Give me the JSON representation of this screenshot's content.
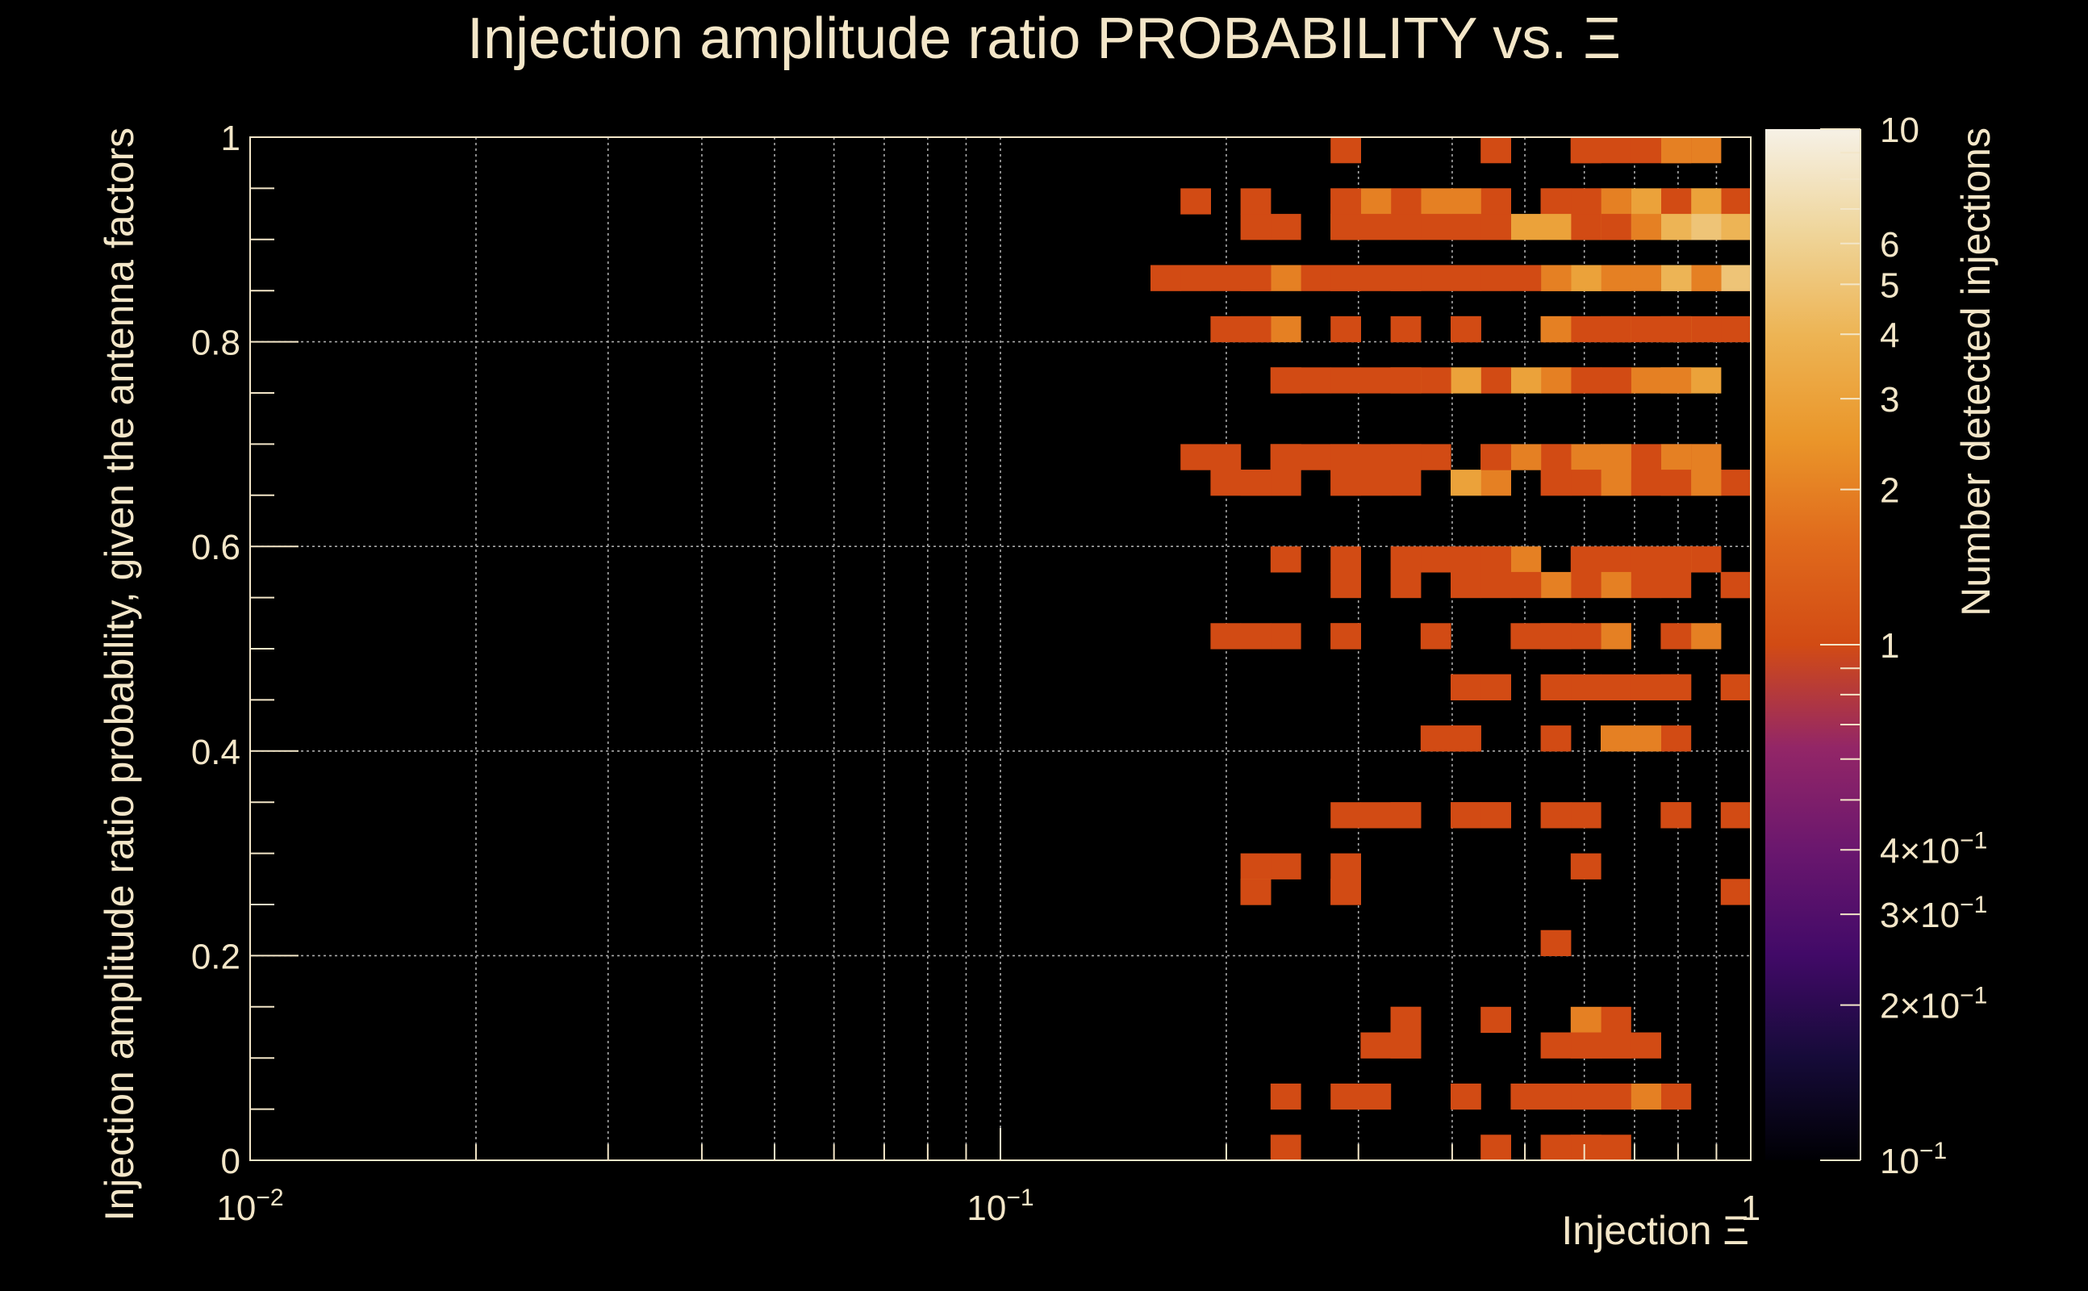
{
  "chart_data": {
    "type": "heatmap",
    "title": "Injection amplitude ratio PROBABILITY vs.  Ξ",
    "xlabel": "Injection Ξ",
    "ylabel": "Injection amplitude ratio probability, given the antenna factors",
    "zlabel": "Number detected injections",
    "xscale": "log",
    "xlim": [
      0.01,
      1
    ],
    "ylim": [
      0,
      1
    ],
    "zscale": "log",
    "zlim": [
      0.1,
      10
    ],
    "grid": true,
    "colormap": "inferno",
    "x_tick_labels": [
      {
        "value": 0.01,
        "base": "10",
        "exp": "−2"
      },
      {
        "value": 0.1,
        "base": "10",
        "exp": "−1"
      },
      {
        "value": 1,
        "base": "1",
        "exp": ""
      }
    ],
    "y_tick_labels": [
      "0",
      "0.2",
      "0.4",
      "0.6",
      "0.8",
      "1"
    ],
    "y_tick_values": [
      0,
      0.2,
      0.4,
      0.6,
      0.8,
      1
    ],
    "z_tick_labels": [
      {
        "value": 10,
        "label": "10"
      },
      {
        "value": 6,
        "label": "6"
      },
      {
        "value": 5,
        "label": "5"
      },
      {
        "value": 4,
        "label": "4"
      },
      {
        "value": 3,
        "label": "3"
      },
      {
        "value": 2,
        "label": "2"
      },
      {
        "value": 1,
        "label": "1"
      },
      {
        "value": 0.4,
        "label": "4×10",
        "exp": "−1"
      },
      {
        "value": 0.3,
        "label": "3×10",
        "exp": "−1"
      },
      {
        "value": 0.2,
        "label": "2×10",
        "exp": "−1"
      },
      {
        "value": 0.1,
        "label": "10",
        "exp": "−1"
      }
    ],
    "x_bins": 50,
    "y_bins": 40,
    "cells": [
      [
        1.0,
        0.95,
        1
      ],
      [
        1.0,
        0.9,
        1
      ],
      [
        1.0,
        0.85,
        1
      ],
      [
        1.0,
        0.8,
        1
      ],
      [
        1.0,
        0.55,
        1
      ],
      [
        1.0,
        0.45,
        1
      ],
      [
        1.0,
        0.35,
        1
      ],
      [
        1.0,
        0.25,
        1
      ],
      [
        0.96,
        0.95,
        1
      ],
      [
        0.96,
        0.9,
        4
      ],
      [
        0.96,
        0.85,
        5
      ],
      [
        0.96,
        0.65,
        1
      ],
      [
        0.96,
        0.55,
        1
      ],
      [
        0.96,
        0.45,
        1
      ],
      [
        0.89,
        1.0,
        2
      ],
      [
        0.89,
        0.95,
        3
      ],
      [
        0.89,
        0.9,
        4
      ],
      [
        0.89,
        0.85,
        1
      ],
      [
        0.89,
        0.8,
        1
      ],
      [
        0.89,
        0.7,
        1
      ],
      [
        0.89,
        0.65,
        1
      ],
      [
        0.89,
        0.6,
        1
      ],
      [
        0.85,
        0.95,
        3
      ],
      [
        0.85,
        0.9,
        5
      ],
      [
        0.85,
        0.85,
        2
      ],
      [
        0.85,
        0.75,
        3
      ],
      [
        0.85,
        0.7,
        2
      ],
      [
        0.85,
        0.65,
        2
      ],
      [
        0.85,
        0.6,
        1
      ],
      [
        0.85,
        0.5,
        2
      ],
      [
        0.8,
        1.0,
        1
      ],
      [
        0.8,
        0.95,
        3
      ],
      [
        0.8,
        0.9,
        4
      ],
      [
        0.8,
        0.85,
        8
      ],
      [
        0.8,
        0.8,
        3
      ],
      [
        0.8,
        0.75,
        4
      ],
      [
        0.8,
        0.7,
        1
      ],
      [
        0.8,
        0.65,
        3
      ],
      [
        0.8,
        0.6,
        2
      ],
      [
        0.8,
        0.55,
        1
      ],
      [
        0.8,
        0.45,
        1
      ],
      [
        0.8,
        0.35,
        1
      ],
      [
        0.8,
        0.05,
        1
      ],
      [
        0.76,
        1.0,
        2
      ],
      [
        0.76,
        0.95,
        1
      ],
      [
        0.76,
        0.9,
        4
      ],
      [
        0.76,
        0.85,
        4
      ],
      [
        0.76,
        0.8,
        1
      ],
      [
        0.76,
        0.75,
        2
      ],
      [
        0.76,
        0.7,
        2
      ],
      [
        0.76,
        0.65,
        1
      ],
      [
        0.76,
        0.6,
        1
      ],
      [
        0.76,
        0.5,
        1
      ],
      [
        0.76,
        0.45,
        1
      ],
      [
        0.76,
        0.4,
        1
      ],
      [
        0.76,
        0.35,
        1
      ],
      [
        0.72,
        1.0,
        1
      ],
      [
        0.72,
        0.95,
        3
      ],
      [
        0.72,
        0.9,
        2
      ],
      [
        0.72,
        0.85,
        2
      ],
      [
        0.72,
        0.8,
        1
      ],
      [
        0.72,
        0.75,
        2
      ],
      [
        0.72,
        0.7,
        1
      ],
      [
        0.72,
        0.65,
        1
      ],
      [
        0.72,
        0.6,
        1
      ],
      [
        0.72,
        0.55,
        1
      ],
      [
        0.72,
        0.45,
        1
      ],
      [
        0.72,
        0.4,
        2
      ],
      [
        0.72,
        0.1,
        1
      ],
      [
        0.72,
        0.05,
        2
      ],
      [
        0.69,
        0.95,
        1
      ],
      [
        0.69,
        0.9,
        3
      ],
      [
        0.69,
        0.85,
        2
      ],
      [
        0.69,
        0.8,
        2
      ],
      [
        0.69,
        0.75,
        1
      ],
      [
        0.69,
        0.7,
        2
      ],
      [
        0.69,
        0.65,
        1
      ],
      [
        0.69,
        0.6,
        1
      ],
      [
        0.69,
        0.5,
        1
      ],
      [
        0.69,
        0.45,
        1
      ],
      [
        0.69,
        0.1,
        1
      ],
      [
        0.65,
        1.0,
        1
      ],
      [
        0.65,
        0.95,
        2
      ],
      [
        0.65,
        0.9,
        1
      ],
      [
        0.65,
        0.85,
        2
      ],
      [
        0.65,
        0.8,
        1
      ],
      [
        0.65,
        0.75,
        1
      ],
      [
        0.65,
        0.7,
        2
      ],
      [
        0.65,
        0.65,
        2
      ],
      [
        0.65,
        0.6,
        1
      ],
      [
        0.65,
        0.55,
        2
      ],
      [
        0.65,
        0.5,
        2
      ],
      [
        0.65,
        0.4,
        2
      ],
      [
        0.65,
        0.15,
        1
      ],
      [
        0.65,
        0.1,
        1
      ],
      [
        0.65,
        0.05,
        1
      ],
      [
        0.65,
        0.0,
        1
      ],
      [
        0.62,
        1.0,
        1
      ],
      [
        0.62,
        0.95,
        1
      ],
      [
        0.62,
        0.9,
        3
      ],
      [
        0.62,
        0.85,
        4
      ],
      [
        0.62,
        0.75,
        1
      ],
      [
        0.62,
        0.7,
        2
      ],
      [
        0.62,
        0.55,
        1
      ],
      [
        0.62,
        0.5,
        1
      ],
      [
        0.62,
        0.45,
        1
      ],
      [
        0.62,
        0.15,
        2
      ],
      [
        0.62,
        0.1,
        1
      ],
      [
        0.62,
        0.05,
        1
      ],
      [
        0.62,
        0.0,
        1
      ],
      [
        0.59,
        1.0,
        1
      ],
      [
        0.59,
        0.95,
        1
      ],
      [
        0.59,
        0.9,
        1
      ],
      [
        0.59,
        0.85,
        3
      ],
      [
        0.59,
        0.8,
        1
      ],
      [
        0.59,
        0.75,
        1
      ],
      [
        0.59,
        0.65,
        1
      ],
      [
        0.59,
        0.6,
        1
      ],
      [
        0.59,
        0.35,
        1
      ],
      [
        0.59,
        0.3,
        1
      ],
      [
        0.59,
        0.1,
        1
      ],
      [
        0.59,
        0.0,
        1
      ],
      [
        0.56,
        0.95,
        1
      ],
      [
        0.56,
        0.85,
        2
      ],
      [
        0.56,
        0.8,
        1
      ],
      [
        0.56,
        0.75,
        1
      ],
      [
        0.56,
        0.7,
        1
      ],
      [
        0.56,
        0.5,
        1
      ],
      [
        0.56,
        0.35,
        1
      ],
      [
        0.56,
        0.05,
        1
      ],
      [
        0.53,
        0.95,
        1
      ],
      [
        0.53,
        0.9,
        3
      ],
      [
        0.53,
        0.85,
        2
      ],
      [
        0.53,
        0.8,
        2
      ],
      [
        0.53,
        0.75,
        2
      ],
      [
        0.53,
        0.7,
        1
      ],
      [
        0.53,
        0.65,
        1
      ],
      [
        0.53,
        0.55,
        2
      ],
      [
        0.53,
        0.5,
        1
      ],
      [
        0.53,
        0.45,
        1
      ],
      [
        0.53,
        0.4,
        1
      ],
      [
        0.53,
        0.2,
        1
      ],
      [
        0.53,
        0.1,
        1
      ],
      [
        0.53,
        0.0,
        1
      ],
      [
        0.5,
        0.9,
        3
      ],
      [
        0.5,
        0.85,
        1
      ],
      [
        0.5,
        0.75,
        3
      ],
      [
        0.5,
        0.7,
        2
      ],
      [
        0.5,
        0.6,
        2
      ],
      [
        0.5,
        0.55,
        1
      ],
      [
        0.5,
        0.5,
        1
      ],
      [
        0.5,
        0.05,
        1
      ],
      [
        0.47,
        0.95,
        1
      ],
      [
        0.47,
        0.9,
        1
      ],
      [
        0.47,
        0.75,
        1
      ],
      [
        0.47,
        0.7,
        2
      ],
      [
        0.47,
        0.65,
        2
      ],
      [
        0.47,
        0.6,
        3
      ],
      [
        0.47,
        0.55,
        1
      ],
      [
        0.47,
        0.45,
        1
      ],
      [
        0.47,
        0.35,
        1
      ],
      [
        0.47,
        0.15,
        1
      ],
      [
        0.45,
        1.0,
        1
      ],
      [
        0.45,
        0.95,
        1
      ],
      [
        0.45,
        0.9,
        1
      ],
      [
        0.45,
        0.85,
        1
      ],
      [
        0.45,
        0.75,
        1
      ],
      [
        0.45,
        0.7,
        1
      ],
      [
        0.45,
        0.6,
        1
      ],
      [
        0.45,
        0.45,
        1
      ],
      [
        0.45,
        0.35,
        1
      ],
      [
        0.45,
        0.0,
        1
      ],
      [
        0.42,
        0.95,
        1
      ],
      [
        0.42,
        0.9,
        1
      ],
      [
        0.42,
        0.8,
        1
      ],
      [
        0.42,
        0.75,
        3
      ],
      [
        0.42,
        0.6,
        1
      ],
      [
        0.42,
        0.55,
        1
      ],
      [
        0.42,
        0.45,
        1
      ],
      [
        0.42,
        0.4,
        1
      ],
      [
        0.42,
        0.35,
        1
      ],
      [
        0.4,
        0.95,
        2
      ],
      [
        0.4,
        0.9,
        1
      ],
      [
        0.4,
        0.85,
        1
      ],
      [
        0.4,
        0.8,
        1
      ],
      [
        0.4,
        0.65,
        3
      ],
      [
        0.4,
        0.45,
        1
      ],
      [
        0.4,
        0.4,
        1
      ],
      [
        0.4,
        0.35,
        1
      ],
      [
        0.4,
        0.05,
        1
      ],
      [
        0.38,
        0.95,
        2
      ],
      [
        0.38,
        0.9,
        1
      ],
      [
        0.38,
        0.85,
        1
      ],
      [
        0.38,
        0.75,
        1
      ],
      [
        0.38,
        0.7,
        1
      ],
      [
        0.38,
        0.6,
        1
      ],
      [
        0.38,
        0.5,
        1
      ],
      [
        0.38,
        0.4,
        1
      ],
      [
        0.36,
        0.95,
        1
      ],
      [
        0.36,
        0.85,
        1
      ],
      [
        0.36,
        0.8,
        1
      ],
      [
        0.36,
        0.75,
        2
      ],
      [
        0.36,
        0.7,
        1
      ],
      [
        0.36,
        0.65,
        1
      ],
      [
        0.36,
        0.35,
        1
      ],
      [
        0.36,
        0.15,
        1
      ],
      [
        0.36,
        0.1,
        1
      ],
      [
        0.34,
        0.95,
        1
      ],
      [
        0.34,
        0.9,
        1
      ],
      [
        0.34,
        0.85,
        1
      ],
      [
        0.34,
        0.75,
        1
      ],
      [
        0.34,
        0.7,
        1
      ],
      [
        0.34,
        0.6,
        1
      ],
      [
        0.34,
        0.55,
        1
      ],
      [
        0.34,
        0.35,
        1
      ],
      [
        0.34,
        0.15,
        1
      ],
      [
        0.34,
        0.1,
        1
      ],
      [
        0.32,
        0.95,
        2
      ],
      [
        0.32,
        0.9,
        1
      ],
      [
        0.32,
        0.85,
        1
      ],
      [
        0.32,
        0.75,
        1
      ],
      [
        0.32,
        0.7,
        1
      ],
      [
        0.32,
        0.65,
        1
      ],
      [
        0.32,
        0.35,
        1
      ],
      [
        0.32,
        0.1,
        1
      ],
      [
        0.32,
        0.05,
        1
      ],
      [
        0.3,
        0.95,
        1
      ],
      [
        0.3,
        0.9,
        3
      ],
      [
        0.3,
        0.85,
        1
      ],
      [
        0.3,
        0.75,
        1
      ],
      [
        0.3,
        0.7,
        1
      ],
      [
        0.3,
        0.65,
        1
      ],
      [
        0.3,
        0.5,
        1
      ],
      [
        0.3,
        0.35,
        1
      ],
      [
        0.3,
        0.25,
        1
      ],
      [
        0.3,
        0.05,
        1
      ],
      [
        0.28,
        1.0,
        1
      ],
      [
        0.28,
        0.95,
        1
      ],
      [
        0.28,
        0.9,
        1
      ],
      [
        0.28,
        0.85,
        1
      ],
      [
        0.28,
        0.8,
        1
      ],
      [
        0.28,
        0.7,
        1
      ],
      [
        0.28,
        0.65,
        1
      ],
      [
        0.28,
        0.6,
        1
      ],
      [
        0.28,
        0.55,
        1
      ],
      [
        0.28,
        0.5,
        1
      ],
      [
        0.28,
        0.3,
        1
      ],
      [
        0.28,
        0.25,
        1
      ],
      [
        0.27,
        0.85,
        1
      ],
      [
        0.27,
        0.75,
        1
      ],
      [
        0.27,
        0.7,
        1
      ],
      [
        0.25,
        0.9,
        1
      ],
      [
        0.25,
        0.85,
        2
      ],
      [
        0.25,
        0.8,
        2
      ],
      [
        0.25,
        0.7,
        1
      ],
      [
        0.25,
        0.65,
        1
      ],
      [
        0.25,
        0.6,
        1
      ],
      [
        0.25,
        0.3,
        1
      ],
      [
        0.25,
        0.05,
        1
      ],
      [
        0.25,
        0.0,
        1
      ],
      [
        0.24,
        0.75,
        1
      ],
      [
        0.24,
        0.7,
        1
      ],
      [
        0.24,
        0.65,
        1
      ],
      [
        0.23,
        0.75,
        1
      ],
      [
        0.23,
        0.7,
        1
      ],
      [
        0.23,
        0.5,
        1
      ],
      [
        0.22,
        0.85,
        1
      ],
      [
        0.22,
        0.8,
        1
      ],
      [
        0.22,
        0.65,
        1
      ],
      [
        0.22,
        0.3,
        1
      ],
      [
        0.22,
        0.25,
        2
      ],
      [
        0.21,
        0.95,
        1
      ],
      [
        0.21,
        0.9,
        1
      ],
      [
        0.21,
        0.85,
        1
      ],
      [
        0.21,
        0.8,
        1
      ],
      [
        0.21,
        0.65,
        1
      ],
      [
        0.21,
        0.5,
        1
      ],
      [
        0.21,
        0.25,
        1
      ],
      [
        0.2,
        0.85,
        1
      ],
      [
        0.2,
        0.8,
        1
      ],
      [
        0.2,
        0.7,
        1
      ],
      [
        0.2,
        0.65,
        1
      ],
      [
        0.2,
        0.5,
        1
      ],
      [
        0.18,
        0.95,
        1
      ],
      [
        0.18,
        0.85,
        1
      ],
      [
        0.18,
        0.7,
        1
      ],
      [
        0.17,
        0.85,
        1
      ]
    ]
  }
}
